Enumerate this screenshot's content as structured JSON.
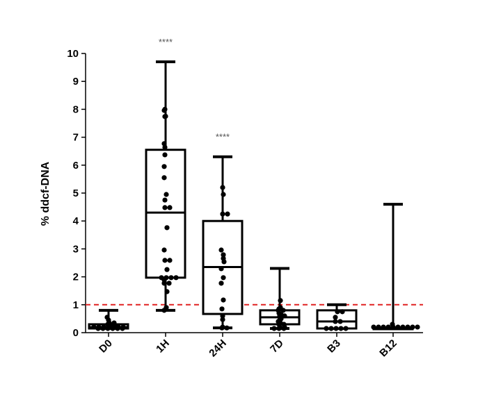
{
  "chart_data": {
    "type": "box",
    "title": "",
    "xlabel": "",
    "ylabel": "% ddcf-DNA",
    "ylim": [
      0,
      10
    ],
    "yticks": [
      0,
      1,
      2,
      3,
      4,
      5,
      6,
      7,
      8,
      9,
      10
    ],
    "categories": [
      "D0",
      "1H",
      "24H",
      "7D",
      "B3",
      "B12"
    ],
    "reference_line": {
      "y": 1,
      "style": "dashed",
      "color": "#e02020"
    },
    "colors": {
      "box": "#000000",
      "points": "#000000"
    },
    "series": [
      {
        "name": "D0",
        "min": 0.15,
        "q1": 0.15,
        "median": 0.2,
        "q3": 0.3,
        "max": 0.8,
        "significance": "",
        "points": [
          0.55,
          0.45,
          0.35,
          0.3,
          0.25,
          0.2,
          0.2,
          0.2,
          0.2,
          0.2,
          0.2,
          0.2,
          0.15,
          0.15,
          0.15,
          0.15,
          0.15,
          0.15,
          0.35,
          0.25
        ]
      },
      {
        "name": "1H",
        "min": 0.8,
        "q1": 1.97,
        "median": 4.3,
        "q3": 6.55,
        "max": 9.7,
        "significance": "****",
        "points": [
          8.0,
          7.96,
          7.75,
          7.74,
          6.77,
          6.64,
          6.37,
          5.95,
          5.55,
          4.95,
          4.75,
          4.48,
          4.48,
          3.76,
          2.96,
          2.59,
          2.59,
          2.26,
          1.97,
          1.97,
          1.97,
          1.97,
          1.89,
          1.77,
          1.77,
          1.47,
          0.9,
          0.8
        ]
      },
      {
        "name": "24H",
        "min": 0.17,
        "q1": 0.67,
        "median": 2.35,
        "q3": 4.0,
        "max": 6.3,
        "significance": "****",
        "points": [
          5.2,
          4.95,
          4.25,
          4.25,
          2.96,
          2.79,
          2.66,
          2.54,
          2.29,
          1.97,
          1.77,
          1.17,
          0.85,
          0.6,
          0.47,
          0.2,
          0.17,
          0.17
        ]
      },
      {
        "name": "7D",
        "min": 0.15,
        "q1": 0.3,
        "median": 0.55,
        "q3": 0.8,
        "max": 2.3,
        "significance": "",
        "points": [
          1.15,
          0.9,
          0.85,
          0.8,
          0.8,
          0.7,
          0.65,
          0.6,
          0.6,
          0.5,
          0.45,
          0.4,
          0.35,
          0.3,
          0.3,
          0.2,
          0.2,
          0.15,
          0.15,
          0.15
        ]
      },
      {
        "name": "B3",
        "min": 0.15,
        "q1": 0.15,
        "median": 0.4,
        "q3": 0.8,
        "max": 1.0,
        "significance": "",
        "points": [
          0.75,
          0.75,
          0.55,
          0.4,
          0.4,
          0.15,
          0.15,
          0.15,
          0.15,
          0.15
        ]
      },
      {
        "name": "B12",
        "min": 0.15,
        "q1": 0.15,
        "median": 0.15,
        "q3": 0.15,
        "max": 4.6,
        "significance": "",
        "points": [
          0.2,
          0.2,
          0.2,
          0.2,
          0.2,
          0.2,
          0.2,
          0.2,
          0.2,
          0.2,
          0.3
        ]
      }
    ]
  }
}
